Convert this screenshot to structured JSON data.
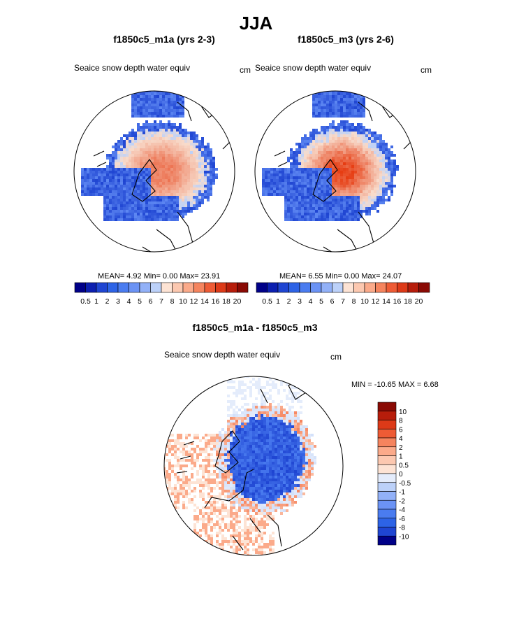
{
  "title": "JJA",
  "panels": [
    {
      "title": "f1850c5_m1a (yrs 2-3)",
      "variable": "Seaice snow depth water equiv",
      "units": "cm",
      "stats": "MEAN=   4.92  Min=   0.00  Max=  23.91",
      "intensity": 0.55
    },
    {
      "title": "f1850c5_m3 (yrs 2-6)",
      "variable": "Seaice snow depth water equiv",
      "units": "cm",
      "stats": "MEAN=   6.55  Min=   0.00  Max=  24.07",
      "intensity": 1.0
    }
  ],
  "diff_panel": {
    "title": "f1850c5_m1a - f1850c5_m3",
    "variable": "Seaice snow depth water equiv",
    "units": "cm",
    "stats": "MIN = -10.65 MAX =   6.68"
  },
  "chart_data": [
    {
      "type": "heatmap",
      "title": "f1850c5_m1a (yrs 2-3)",
      "subtitle": "Seaice snow depth water equiv (cm)",
      "season": "JJA",
      "mean": 4.92,
      "min": 0.0,
      "max": 23.91,
      "colorbar_levels": [
        "0.5",
        "1",
        "2",
        "3",
        "4",
        "5",
        "6",
        "7",
        "8",
        "10",
        "12",
        "14",
        "16",
        "18",
        "20"
      ],
      "colorbar_colors": [
        "#000088",
        "#0c1fb0",
        "#1f45d2",
        "#2d63e6",
        "#4a7cf0",
        "#6b93f5",
        "#92b1f8",
        "#bcd1f9",
        "#fde3d4",
        "#fcc8b0",
        "#fbaa8a",
        "#f5845e",
        "#ee5b35",
        "#dd3a18",
        "#b71d0b",
        "#8a0a04"
      ]
    },
    {
      "type": "heatmap",
      "title": "f1850c5_m3 (yrs 2-6)",
      "subtitle": "Seaice snow depth water equiv (cm)",
      "season": "JJA",
      "mean": 6.55,
      "min": 0.0,
      "max": 24.07,
      "colorbar_levels": [
        "0.5",
        "1",
        "2",
        "3",
        "4",
        "5",
        "6",
        "7",
        "8",
        "10",
        "12",
        "14",
        "16",
        "18",
        "20"
      ],
      "colorbar_colors": [
        "#000088",
        "#0c1fb0",
        "#1f45d2",
        "#2d63e6",
        "#4a7cf0",
        "#6b93f5",
        "#92b1f8",
        "#bcd1f9",
        "#fde3d4",
        "#fcc8b0",
        "#fbaa8a",
        "#f5845e",
        "#ee5b35",
        "#dd3a18",
        "#b71d0b",
        "#8a0a04"
      ]
    },
    {
      "type": "heatmap",
      "title": "f1850c5_m1a - f1850c5_m3",
      "subtitle": "Seaice snow depth water equiv (cm)",
      "min": -10.65,
      "max": 6.68,
      "colorbar_levels": [
        "10",
        "8",
        "6",
        "4",
        "2",
        "1",
        "0.5",
        "0",
        "-0.5",
        "-1",
        "-2",
        "-4",
        "-6",
        "-8",
        "-10"
      ],
      "colorbar_colors": [
        "#8a0a04",
        "#b71d0b",
        "#dd3a18",
        "#ee5b35",
        "#f5845e",
        "#fbaa8a",
        "#fcc8b0",
        "#fde3d4",
        "#e4ecfb",
        "#bcd1f9",
        "#92b1f8",
        "#6b93f5",
        "#4a7cf0",
        "#2d63e6",
        "#1f45d2",
        "#000088"
      ]
    }
  ]
}
